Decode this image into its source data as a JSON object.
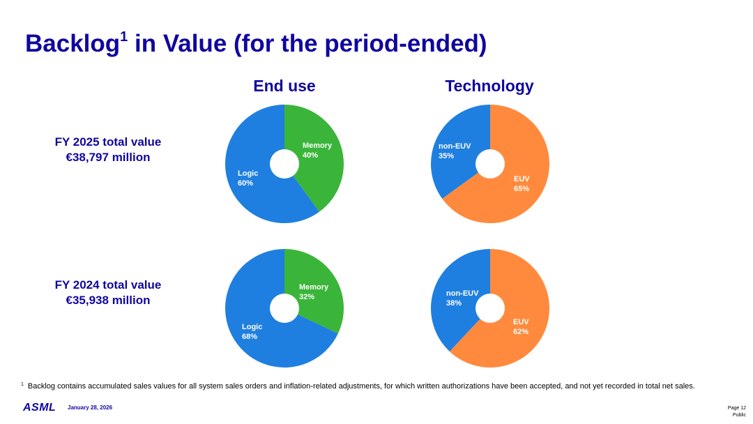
{
  "header": {
    "title_main": "Backlog",
    "title_sup": "1",
    "title_rest": " in Value (for the period-ended)"
  },
  "columns": {
    "end_use": "End use",
    "technology": "Technology"
  },
  "rows": [
    {
      "line1": "FY 2025 total value",
      "line2": "€38,797 million"
    },
    {
      "line1": "FY 2024 total value",
      "line2": "€35,938 million"
    }
  ],
  "colors": {
    "blue": "#1f7fe0",
    "green": "#3ab53a",
    "orange": "#ff8a3d",
    "brand": "#10069f"
  },
  "chart_data": [
    {
      "type": "pie",
      "title": "End use",
      "period": "FY 2025",
      "slices": [
        {
          "name": "Memory",
          "pct_label": "40%",
          "value": 40,
          "color": "#3ab53a"
        },
        {
          "name": "Logic",
          "pct_label": "60%",
          "value": 60,
          "color": "#1f7fe0"
        }
      ]
    },
    {
      "type": "pie",
      "title": "Technology",
      "period": "FY 2025",
      "slices": [
        {
          "name": "EUV",
          "pct_label": "65%",
          "value": 65,
          "color": "#ff8a3d"
        },
        {
          "name": "non-EUV",
          "pct_label": "35%",
          "value": 35,
          "color": "#1f7fe0"
        }
      ]
    },
    {
      "type": "pie",
      "title": "End use",
      "period": "FY 2024",
      "slices": [
        {
          "name": "Memory",
          "pct_label": "32%",
          "value": 32,
          "color": "#3ab53a"
        },
        {
          "name": "Logic",
          "pct_label": "68%",
          "value": 68,
          "color": "#1f7fe0"
        }
      ]
    },
    {
      "type": "pie",
      "title": "Technology",
      "period": "FY 2024",
      "slices": [
        {
          "name": "EUV",
          "pct_label": "62%",
          "value": 62,
          "color": "#ff8a3d"
        },
        {
          "name": "non-EUV",
          "pct_label": "38%",
          "value": 38,
          "color": "#1f7fe0"
        }
      ]
    }
  ],
  "footnote": {
    "marker": "1",
    "text": "Backlog contains accumulated sales values for all system sales orders and inflation-related adjustments, for which written authorizations have been accepted, and not yet recorded in total net sales."
  },
  "footer": {
    "logo": "ASML",
    "date": "January 28, 2026",
    "page": "Page 12",
    "classification": "Public"
  }
}
